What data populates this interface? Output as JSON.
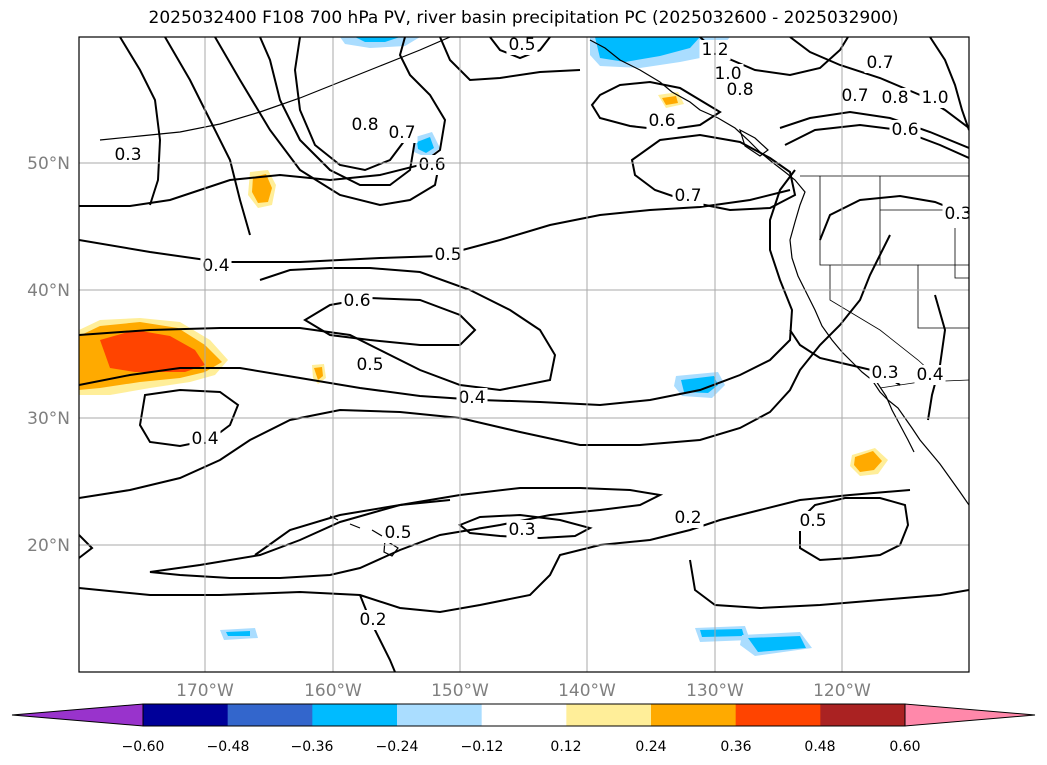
{
  "title": "2025032400 F108 700 hPa PV, river basin precipitation PC (2025032600 - 2025032900)",
  "map": {
    "lat_labels": [
      "50°N",
      "40°N",
      "30°N",
      "20°N"
    ],
    "lon_labels": [
      "170°W",
      "160°W",
      "150°W",
      "140°W",
      "130°W",
      "120°W"
    ],
    "grid": true,
    "contour_color": "#000000",
    "contour_labels": [
      "0.5",
      "1.2",
      "1.0",
      "0.8",
      "0.7",
      "0.8",
      "1.0",
      "0.7",
      "0.6",
      "0.3",
      "0.8",
      "0.7",
      "0.6",
      "0.6",
      "0.7",
      "0.3",
      "0.4",
      "0.5",
      "0.6",
      "0.5",
      "0.4",
      "0.4",
      "0.5",
      "0.3",
      "0.2",
      "0.5",
      "0.3",
      "0.4",
      "0.2"
    ]
  },
  "colorbar": {
    "colors": [
      "#9933cc",
      "#000099",
      "#3366cc",
      "#00bbff",
      "#aaddff",
      "#ffffff",
      "#ffee99",
      "#ffaa00",
      "#ff4400",
      "#aa2222",
      "#ff88aa"
    ],
    "tick_labels": [
      "−0.60",
      "−0.48",
      "−0.36",
      "−0.24",
      "−0.12",
      "0.12",
      "0.24",
      "0.36",
      "0.48",
      "0.60"
    ],
    "extend": "both"
  }
}
